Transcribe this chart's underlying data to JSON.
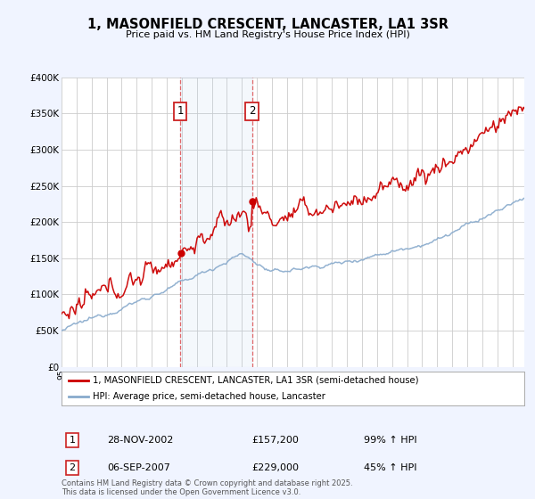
{
  "title": "1, MASONFIELD CRESCENT, LANCASTER, LA1 3SR",
  "subtitle": "Price paid vs. HM Land Registry's House Price Index (HPI)",
  "ylim": [
    0,
    400000
  ],
  "yticks": [
    0,
    50000,
    100000,
    150000,
    200000,
    250000,
    300000,
    350000,
    400000
  ],
  "ytick_labels": [
    "£0",
    "£50K",
    "£100K",
    "£150K",
    "£200K",
    "£250K",
    "£300K",
    "£350K",
    "£400K"
  ],
  "bg_color": "#f0f4ff",
  "plot_bg_color": "#ffffff",
  "red_line_color": "#cc0000",
  "blue_line_color": "#88aacc",
  "grid_color": "#cccccc",
  "sale1_year": 2002.9,
  "sale1_price": 157200,
  "sale2_year": 2007.68,
  "sale2_price": 229000,
  "sale1_date": "28-NOV-2002",
  "sale1_amount": "£157,200",
  "sale1_hpi": "99% ↑ HPI",
  "sale2_date": "06-SEP-2007",
  "sale2_amount": "£229,000",
  "sale2_hpi": "45% ↑ HPI",
  "legend1": "1, MASONFIELD CRESCENT, LANCASTER, LA1 3SR (semi-detached house)",
  "legend2": "HPI: Average price, semi-detached house, Lancaster",
  "footer": "Contains HM Land Registry data © Crown copyright and database right 2025.\nThis data is licensed under the Open Government Licence v3.0."
}
